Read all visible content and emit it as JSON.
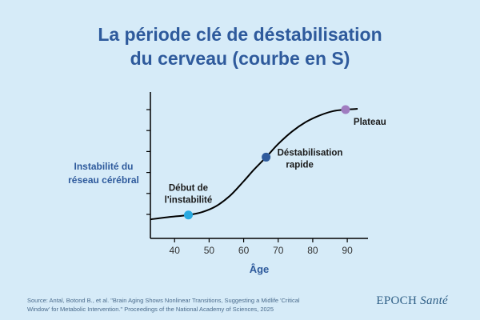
{
  "header": {
    "title_line1": "La période clé de déstabilisation",
    "title_line2": "du cerveau (courbe en S)"
  },
  "chart_data": {
    "type": "line",
    "xlabel": "Âge",
    "ylabel_line1": "Instabilité du",
    "ylabel_line2": "réseau cérébral",
    "x_ticks": [
      40,
      50,
      60,
      70,
      80,
      90
    ],
    "xlim": [
      33,
      96
    ],
    "ylim": [
      0,
      10
    ],
    "y_tick_count": 6,
    "grid": false,
    "series": [
      {
        "color": "#000000",
        "x": [
          33,
          38,
          44,
          48,
          52,
          56,
          60,
          63,
          66.5,
          70,
          74,
          78,
          82,
          86,
          89.5,
          93
        ],
        "y": [
          1.3,
          1.45,
          1.6,
          1.8,
          2.2,
          2.9,
          3.9,
          4.7,
          5.55,
          6.45,
          7.3,
          7.95,
          8.4,
          8.7,
          8.8,
          8.85
        ]
      }
    ],
    "highlights": [
      {
        "x": 44,
        "y": 1.6,
        "color": "#29a9e0",
        "label_line1": "Début de",
        "label_line2": "l'instabilité"
      },
      {
        "x": 66.5,
        "y": 5.55,
        "color": "#2e5a9c",
        "label_line1": "Déstabilisation",
        "label_line2": "rapide"
      },
      {
        "x": 89.5,
        "y": 8.8,
        "color": "#a07cc0",
        "label_line1": "Plateau",
        "label_line2": ""
      }
    ]
  },
  "footer": {
    "source_line1": "Source: Antal, Botond B., et al. \"Brain Aging Shows Nonlinear Transitions, Suggesting a Midlife 'Critical",
    "source_line2": "Window' for Metabolic Intervention.\" Proceedings of the National Academy of Sciences, 2025",
    "brand_main": "EPOCH",
    "brand_italic": "Santé"
  },
  "colors": {
    "background": "#d6ebf8",
    "title": "#2e5a9c",
    "axis": "#000000"
  }
}
